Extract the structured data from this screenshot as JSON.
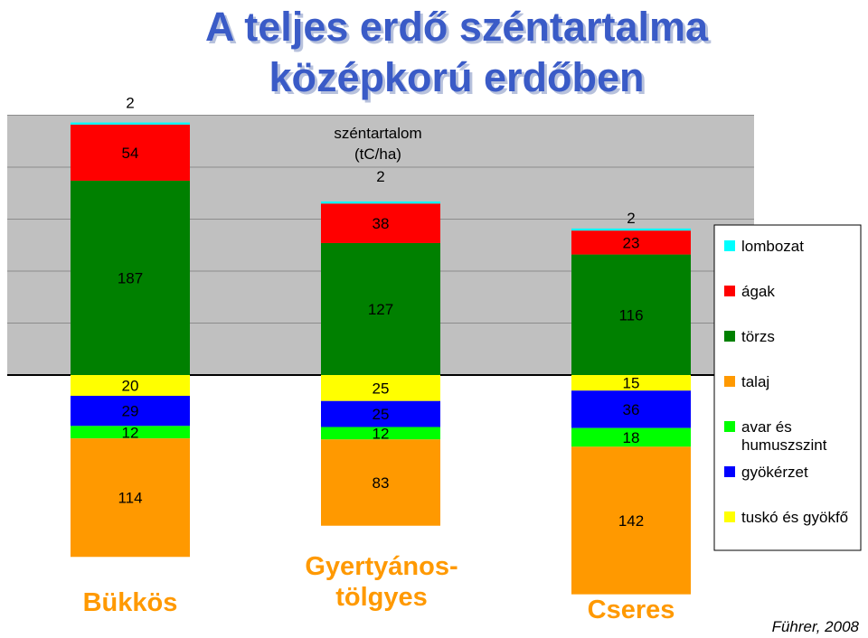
{
  "title_line1": "A teljes erdő széntartalma",
  "title_line2": "középkorú erdőben",
  "source": "Führer, 2008",
  "chart_data": {
    "type": "bar",
    "stacked": "diverging",
    "categories": [
      "Bükkös",
      "Gyertyános-\ntölgyes",
      "Cseres"
    ],
    "ylabel": "széntartalom\n(tC/ha)",
    "above_ground": [
      {
        "name": "törzs",
        "color": "#008000",
        "values": [
          187,
          127,
          116
        ]
      },
      {
        "name": "ágak",
        "color": "#ff0000",
        "values": [
          54,
          38,
          23
        ]
      },
      {
        "name": "lombozat",
        "color": "#00ffff",
        "values": [
          2,
          2,
          2
        ]
      }
    ],
    "below_ground": [
      {
        "name": "tuskó és gyökfő",
        "color": "#ffff00",
        "values": [
          20,
          25,
          15
        ]
      },
      {
        "name": "gyökérzet",
        "color": "#0000ff",
        "values": [
          29,
          25,
          36
        ]
      },
      {
        "name": "avar és humuszszint",
        "color": "#00ff00",
        "values": [
          12,
          12,
          18
        ]
      },
      {
        "name": "talaj",
        "color": "#ff9900",
        "values": [
          114,
          83,
          142
        ]
      }
    ],
    "legend": [
      {
        "name": "lombozat",
        "color": "#00ffff"
      },
      {
        "name": "ágak",
        "color": "#ff0000"
      },
      {
        "name": "törzs",
        "color": "#008000"
      },
      {
        "name": "talaj",
        "color": "#ff9900"
      },
      {
        "name": "avar és humuszszint",
        "color": "#00ff00"
      },
      {
        "name": "gyökérzet",
        "color": "#0000ff"
      },
      {
        "name": "tuskó és gyökfő",
        "color": "#ffff00"
      }
    ],
    "legend_position": "right",
    "grid": true
  }
}
